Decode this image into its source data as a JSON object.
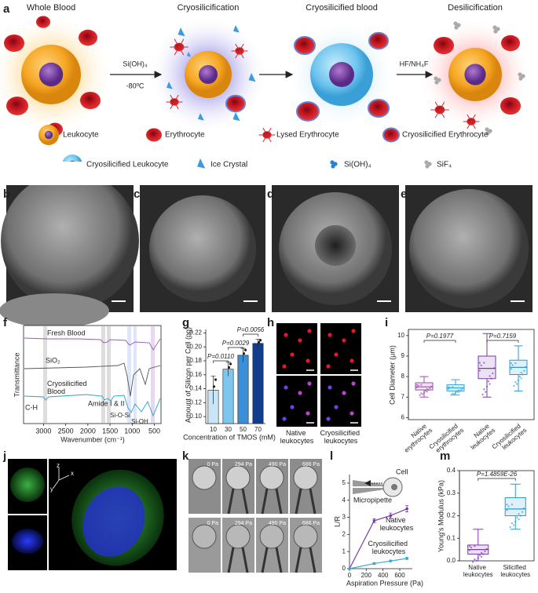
{
  "figure": {
    "panel_labels": [
      "a",
      "b",
      "c",
      "d",
      "e",
      "f",
      "g",
      "h",
      "i",
      "j",
      "k",
      "l",
      "m"
    ],
    "schematic": {
      "stages": [
        "Whole Blood",
        "Cryosilicification",
        "Cryosilicified blood",
        "Desilicification"
      ],
      "step1": [
        "Si(OH)₄",
        "-80ºC"
      ],
      "step3": "HF/NH₄F",
      "legend": [
        "Leukocyte",
        "Erythrocyte",
        "Lysed Erythrocyte",
        "Cryosilicified Erythrocyte",
        "Cryosilicified Leukocyte",
        "Ice Crystal",
        "Si(OH)₄",
        "SiF₄"
      ]
    },
    "ftir": {
      "ylabel": "Transmittance",
      "xlabel": "Wavenumber (cm⁻¹)",
      "xlim": [
        3450,
        350
      ],
      "xticks": [
        3000,
        2500,
        2000,
        1500,
        1000,
        500
      ],
      "traces": [
        "Fresh Blood",
        "SiO₂",
        "Cryosilicified Blood"
      ],
      "bands": [
        "C-H",
        "Amide I & II",
        "Si-O-Si",
        "Si-OH"
      ]
    },
    "fluorescence": {
      "groups": [
        "Native leukocytes",
        "Cryosilicified leukocytes"
      ]
    },
    "confocal": {
      "axes": [
        "z",
        "y",
        "x"
      ]
    },
    "aspiration": {
      "pressures": [
        "0 Pa",
        "294 Pa",
        "490 Pa",
        "686 Pa"
      ]
    }
  },
  "chart_data": [
    {
      "type": "bar",
      "xlabel": "Concentration of TMOS (mM)",
      "ylabel": "Amount of Silicon per Cell (pg)",
      "categories": [
        "10",
        "30",
        "50",
        "70"
      ],
      "values": [
        0.138,
        0.168,
        0.188,
        0.205
      ],
      "errors": [
        0.02,
        0.01,
        0.01,
        0.006
      ],
      "colors": [
        "#c9e6f8",
        "#7fc6ee",
        "#3a8fd6",
        "#123d8c"
      ],
      "ylim": [
        0.09,
        0.225
      ],
      "yticks": [
        {
          "value": 0.1,
          "label": "0.10"
        },
        {
          "value": 0.12,
          "label": "0.12"
        },
        {
          "value": 0.14,
          "label": "0.14"
        },
        {
          "value": 0.16,
          "label": "0.16"
        },
        {
          "value": 0.18,
          "label": "0.18"
        },
        {
          "value": 0.2,
          "label": "0.20"
        },
        {
          "value": 0.22,
          "label": "0.22"
        }
      ],
      "annotations": [
        "P=0.0110",
        "P=0.0029",
        "P=0.0056"
      ]
    },
    {
      "type": "box",
      "ylabel": "Cell Diameter (μm)",
      "categories": [
        "Native erythrocytes",
        "Cryosilicified erythrocytes",
        "Native leukocytes",
        "Cryosilicified leukocytes"
      ],
      "colors": [
        "#a04ab0",
        "#3aa6d8",
        "#7a3aa8",
        "#2a9ad6"
      ],
      "medians": [
        7.5,
        7.45,
        8.4,
        8.45
      ],
      "q1": [
        7.35,
        7.3,
        7.9,
        8.1
      ],
      "q3": [
        7.7,
        7.6,
        9.0,
        8.8
      ],
      "lo": [
        7.0,
        7.1,
        7.0,
        7.3
      ],
      "hi": [
        8.0,
        7.85,
        10.1,
        9.5
      ],
      "ylim": [
        5.9,
        10.3
      ],
      "yticks": [
        6,
        7,
        8,
        9,
        10
      ],
      "annotations": [
        "P=0.1977",
        "P=0.7159"
      ]
    },
    {
      "type": "line",
      "xlabel": "Aspiration Pressure (Pa)",
      "ylabel": "L/R",
      "x": [
        0,
        294,
        490,
        686
      ],
      "xlim": [
        0,
        750
      ],
      "xticks": [
        0,
        200,
        400,
        600
      ],
      "ylim": [
        0,
        5.5
      ],
      "yticks": [
        0,
        1,
        2,
        3,
        4,
        5
      ],
      "series": [
        {
          "name": "Native leukocytes",
          "color": "#7a3aa8",
          "values": [
            0,
            2.8,
            3.1,
            3.5
          ],
          "errors": [
            0,
            0.12,
            0.15,
            0.18
          ]
        },
        {
          "name": "Cryosilicified leukocytes",
          "color": "#3aa6d8",
          "values": [
            0,
            0.3,
            0.45,
            0.6
          ],
          "errors": [
            0,
            0.05,
            0.05,
            0.06
          ]
        }
      ],
      "annotations": [
        "Cell",
        "Micropipette"
      ]
    },
    {
      "type": "box",
      "ylabel": "Young's Modulus (kPa)",
      "categories": [
        "Native leukocytes",
        "Silicified leukocytes"
      ],
      "colors": [
        "#7a3aa8",
        "#2a9ad6"
      ],
      "medians": [
        0.05,
        0.23
      ],
      "q1": [
        0.03,
        0.2
      ],
      "q3": [
        0.07,
        0.28
      ],
      "lo": [
        0.0,
        0.14
      ],
      "hi": [
        0.14,
        0.34
      ],
      "ylim": [
        0,
        0.4
      ],
      "yticks": [
        {
          "value": 0,
          "label": "0.0"
        },
        {
          "value": 0.1,
          "label": "0.1"
        },
        {
          "value": 0.2,
          "label": "0.2"
        },
        {
          "value": 0.3,
          "label": "0.3"
        },
        {
          "value": 0.4,
          "label": "0.4"
        }
      ],
      "annotations": [
        "P=1.4859E-26"
      ]
    }
  ]
}
